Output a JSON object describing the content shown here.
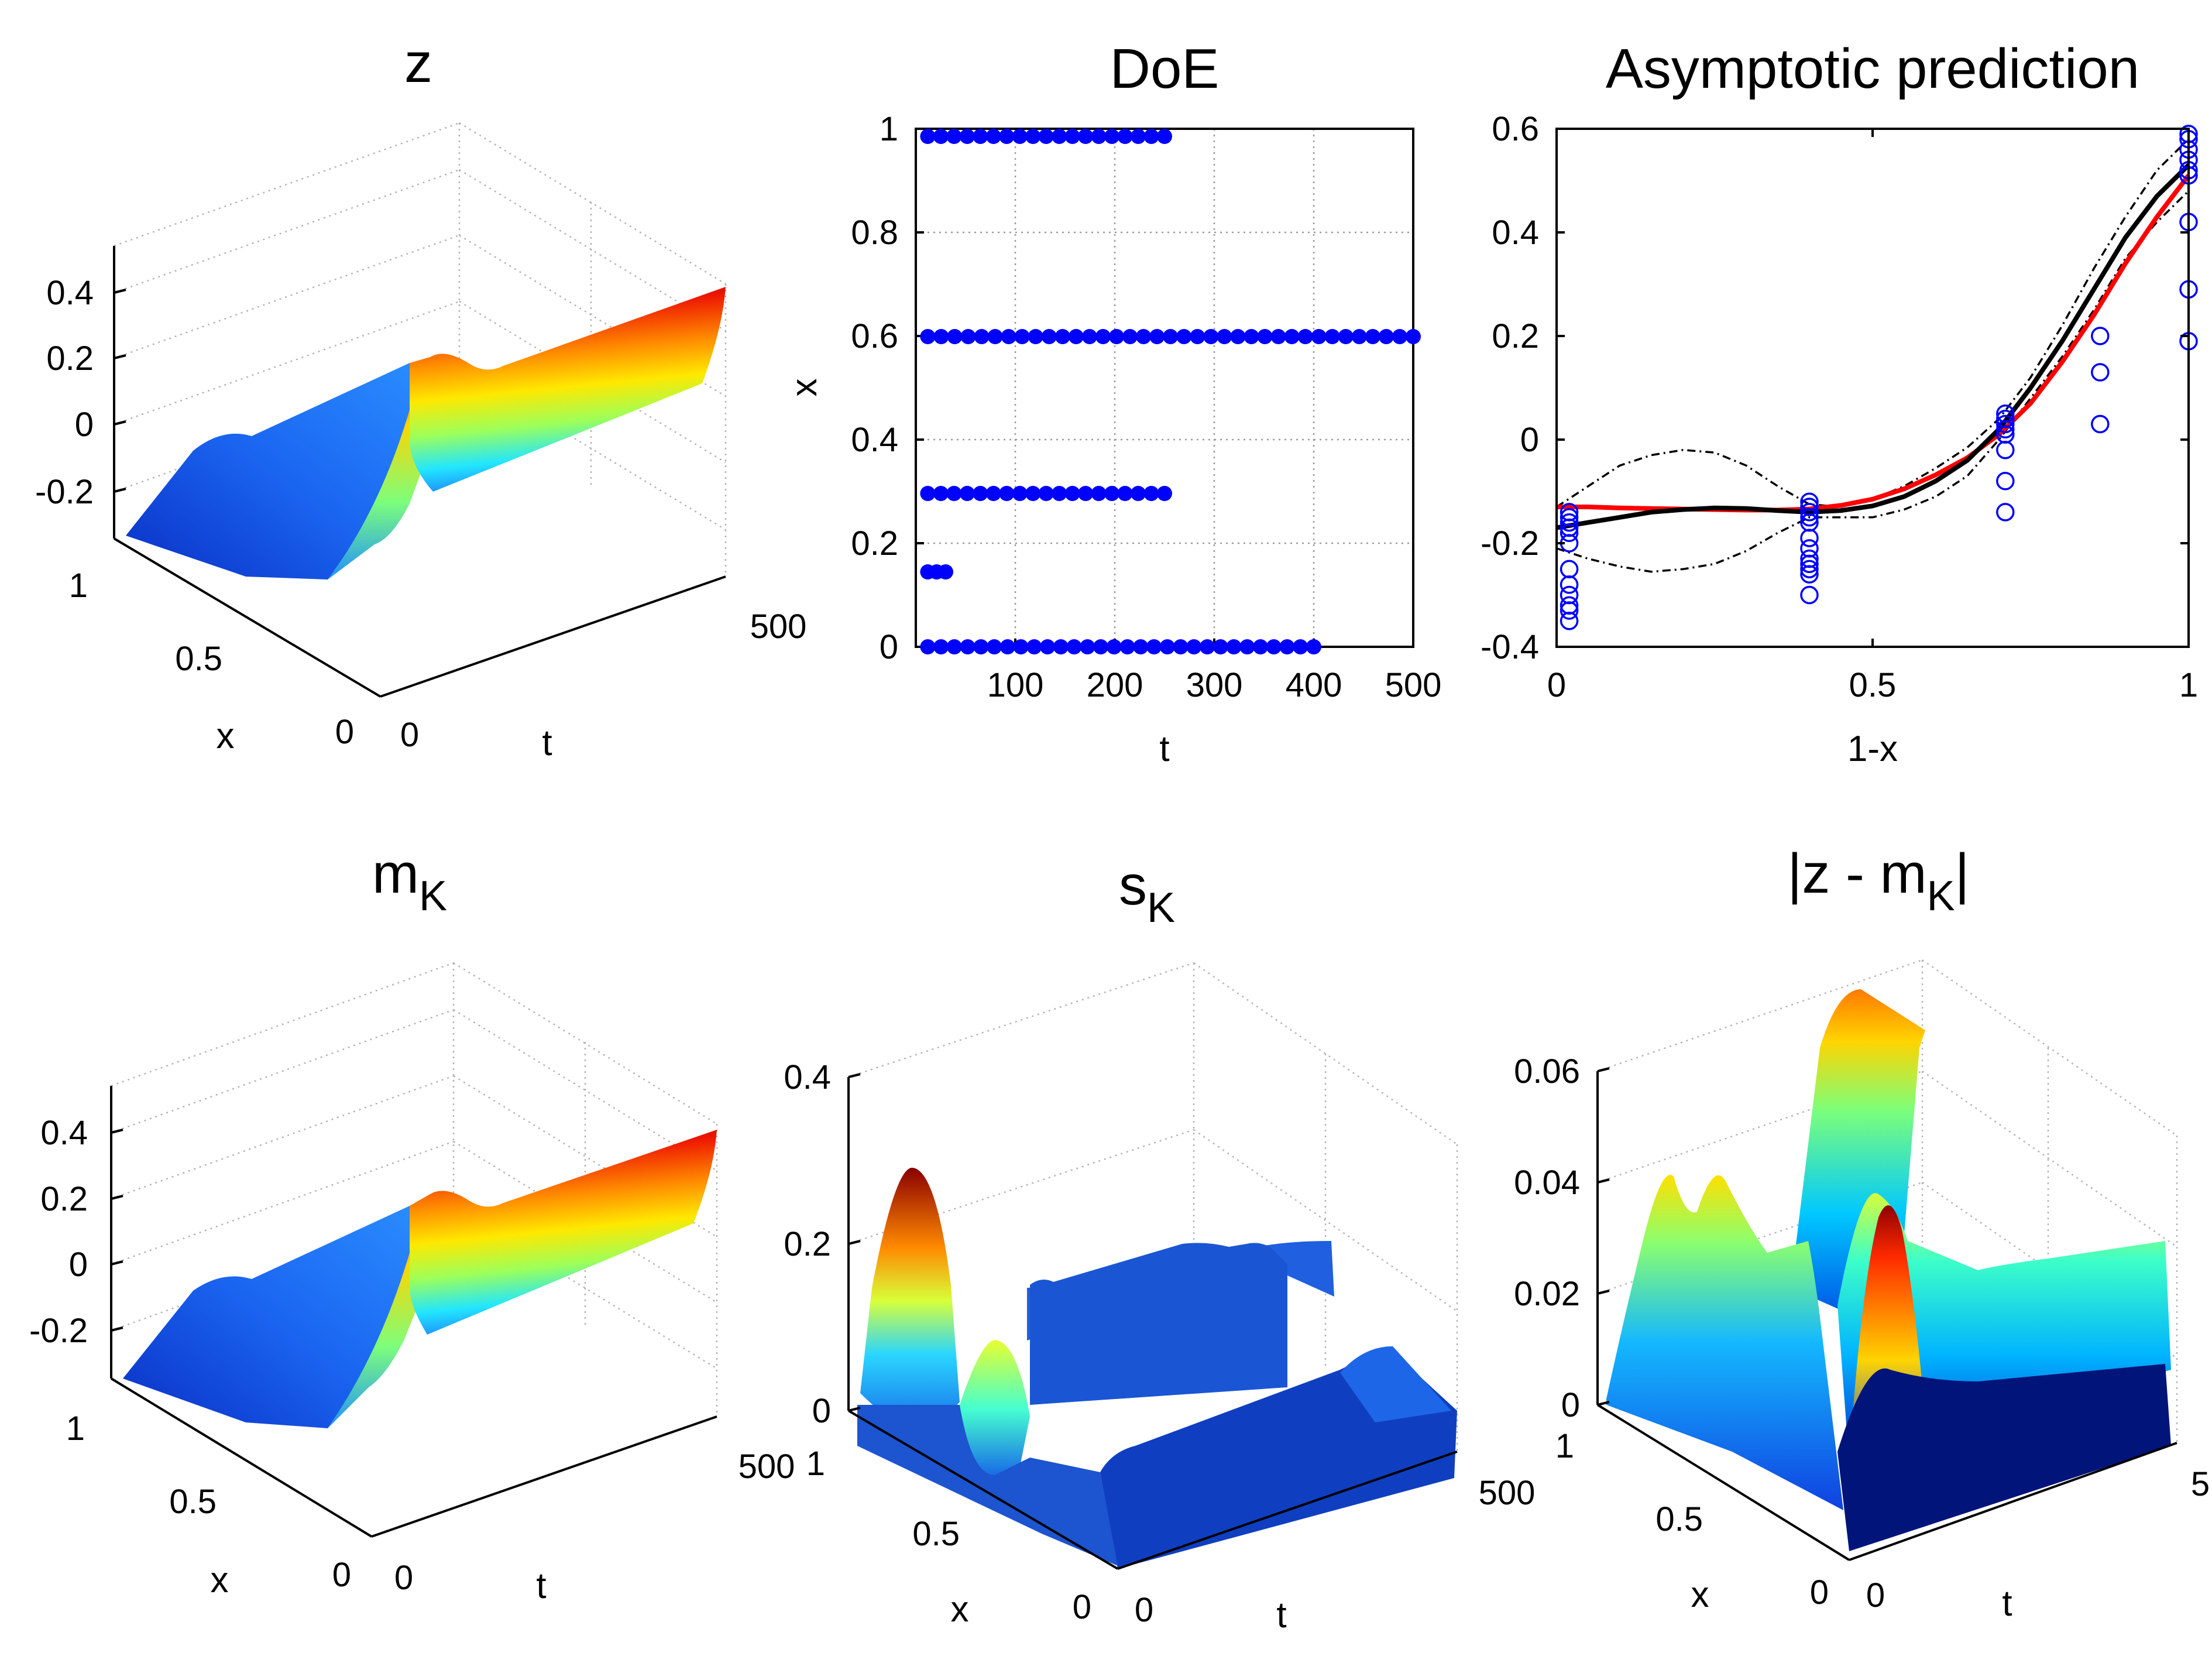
{
  "colors": {
    "marker": "#0000ff",
    "prediction_red": "#ff0000",
    "mean_black": "#000000",
    "band": "#000000"
  },
  "chart_data": [
    {
      "id": "z",
      "type": "surface3d",
      "title": "z",
      "xlabel": "x",
      "ylabel": "t",
      "xticks": [
        "0",
        "0.5",
        "1"
      ],
      "yticks": [
        "0",
        "500"
      ],
      "zticks": [
        "-0.2",
        "0",
        "0.2",
        "0.4"
      ],
      "xlim": [
        0,
        1
      ],
      "ylim": [
        0,
        500
      ],
      "zlim": [
        -0.3,
        0.55
      ],
      "colormap": "jet"
    },
    {
      "id": "doe",
      "type": "scatter",
      "title": "DoE",
      "xlabel": "t",
      "ylabel": "x",
      "xlim": [
        0,
        500
      ],
      "ylim": [
        0,
        1
      ],
      "xticks": [
        "100",
        "200",
        "300",
        "400",
        "500"
      ],
      "yticks": [
        "0",
        "0.2",
        "0.4",
        "0.6",
        "0.8",
        "1"
      ],
      "grid": true,
      "series": [
        {
          "y": 1.0,
          "x_start": 0,
          "x_end": 250,
          "count": 19
        },
        {
          "y": 0.6,
          "x_start": 0,
          "x_end": 500,
          "count": 37
        },
        {
          "y": 0.3,
          "x_start": 0,
          "x_end": 250,
          "count": 19
        },
        {
          "y": 0.15,
          "x_start": 0,
          "x_end": 30,
          "count": 3
        },
        {
          "y": 0.0,
          "x_start": 0,
          "x_end": 400,
          "count": 30
        }
      ]
    },
    {
      "id": "asym",
      "type": "line",
      "title": "Asymptotic prediction",
      "xlabel": "1-x",
      "ylabel": "",
      "xlim": [
        0,
        1
      ],
      "ylim": [
        -0.4,
        0.6
      ],
      "xticks": [
        "0",
        "0.5",
        "1"
      ],
      "yticks": [
        "-0.4",
        "-0.2",
        "0",
        "0.2",
        "0.4",
        "0.6"
      ],
      "observations": [
        {
          "x": 0.02,
          "y": [
            -0.35,
            -0.33,
            -0.32,
            -0.3,
            -0.28,
            -0.25,
            -0.2,
            -0.18,
            -0.17,
            -0.16,
            -0.15,
            -0.14
          ]
        },
        {
          "x": 0.4,
          "y": [
            -0.3,
            -0.26,
            -0.25,
            -0.24,
            -0.23,
            -0.21,
            -0.19,
            -0.16,
            -0.15,
            -0.14,
            -0.13,
            -0.12
          ]
        },
        {
          "x": 0.71,
          "y": [
            -0.14,
            -0.08,
            -0.02,
            0.01,
            0.02,
            0.03,
            0.04,
            0.05
          ]
        },
        {
          "x": 0.86,
          "y": [
            0.03,
            0.13,
            0.2
          ]
        },
        {
          "x": 1.0,
          "y": [
            0.19,
            0.29,
            0.42,
            0.51,
            0.52,
            0.54,
            0.56,
            0.58,
            0.59
          ]
        }
      ],
      "series": [
        {
          "style": "red",
          "x": [
            0,
            0.05,
            0.1,
            0.15,
            0.2,
            0.25,
            0.3,
            0.35,
            0.4,
            0.45,
            0.5,
            0.55,
            0.6,
            0.65,
            0.7,
            0.75,
            0.8,
            0.85,
            0.9,
            0.95,
            1.0
          ],
          "y": [
            -0.13,
            -0.13,
            -0.132,
            -0.133,
            -0.134,
            -0.135,
            -0.136,
            -0.136,
            -0.134,
            -0.127,
            -0.115,
            -0.095,
            -0.068,
            -0.035,
            0.01,
            0.07,
            0.15,
            0.24,
            0.34,
            0.43,
            0.51
          ]
        },
        {
          "style": "black",
          "x": [
            0,
            0.05,
            0.1,
            0.15,
            0.2,
            0.25,
            0.3,
            0.35,
            0.4,
            0.45,
            0.5,
            0.55,
            0.6,
            0.65,
            0.7,
            0.75,
            0.8,
            0.85,
            0.9,
            0.95,
            1.0
          ],
          "y": [
            -0.17,
            -0.16,
            -0.15,
            -0.14,
            -0.135,
            -0.132,
            -0.133,
            -0.137,
            -0.14,
            -0.137,
            -0.128,
            -0.11,
            -0.08,
            -0.04,
            0.02,
            0.1,
            0.19,
            0.29,
            0.39,
            0.47,
            0.53
          ]
        },
        {
          "style": "dashdot",
          "x": [
            0,
            0.05,
            0.1,
            0.15,
            0.2,
            0.25,
            0.3,
            0.35,
            0.4,
            0.45,
            0.5,
            0.55,
            0.6,
            0.65,
            0.7,
            0.75,
            0.8,
            0.85,
            0.9,
            0.95,
            1.0
          ],
          "y": [
            -0.13,
            -0.09,
            -0.05,
            -0.03,
            -0.02,
            -0.025,
            -0.05,
            -0.09,
            -0.125,
            -0.13,
            -0.115,
            -0.09,
            -0.055,
            -0.015,
            0.04,
            0.12,
            0.22,
            0.33,
            0.43,
            0.52,
            0.58
          ]
        },
        {
          "style": "dashdot",
          "x": [
            0,
            0.05,
            0.1,
            0.15,
            0.2,
            0.25,
            0.3,
            0.35,
            0.4,
            0.45,
            0.5,
            0.55,
            0.6,
            0.65,
            0.7,
            0.75,
            0.8,
            0.85,
            0.9,
            0.95,
            1.0
          ],
          "y": [
            -0.21,
            -0.23,
            -0.245,
            -0.255,
            -0.25,
            -0.24,
            -0.215,
            -0.18,
            -0.15,
            -0.15,
            -0.15,
            -0.135,
            -0.11,
            -0.07,
            0.0,
            0.08,
            0.16,
            0.25,
            0.35,
            0.42,
            0.48
          ]
        }
      ]
    },
    {
      "id": "mk",
      "type": "surface3d",
      "title": "m",
      "title_sub": "K",
      "xlabel": "x",
      "ylabel": "t",
      "xticks": [
        "0",
        "0.5",
        "1"
      ],
      "yticks": [
        "0",
        "500"
      ],
      "zticks": [
        "-0.2",
        "0",
        "0.2",
        "0.4"
      ],
      "xlim": [
        0,
        1
      ],
      "ylim": [
        0,
        500
      ],
      "zlim": [
        -0.3,
        0.55
      ],
      "colormap": "jet"
    },
    {
      "id": "sk",
      "type": "surface3d",
      "title": "s",
      "title_sub": "K",
      "xlabel": "x",
      "ylabel": "t",
      "xticks": [
        "0",
        "0.5",
        "1"
      ],
      "yticks": [
        "0",
        "500"
      ],
      "zticks": [
        "0",
        "0.2",
        "0.4"
      ],
      "xlim": [
        0,
        1
      ],
      "ylim": [
        0,
        500
      ],
      "zlim": [
        0,
        0.4
      ],
      "colormap": "jet"
    },
    {
      "id": "err",
      "type": "surface3d",
      "title": "|z - m",
      "title_sub": "K",
      "title_end": "|",
      "xlabel": "x",
      "ylabel": "t",
      "xticks": [
        "0",
        "0.5",
        "1"
      ],
      "yticks": [
        "0",
        "5"
      ],
      "zticks": [
        "0",
        "0.02",
        "0.04",
        "0.06"
      ],
      "xlim": [
        0,
        1
      ],
      "ylim": [
        0,
        500
      ],
      "zlim": [
        0,
        0.065
      ],
      "colormap": "jet"
    }
  ]
}
